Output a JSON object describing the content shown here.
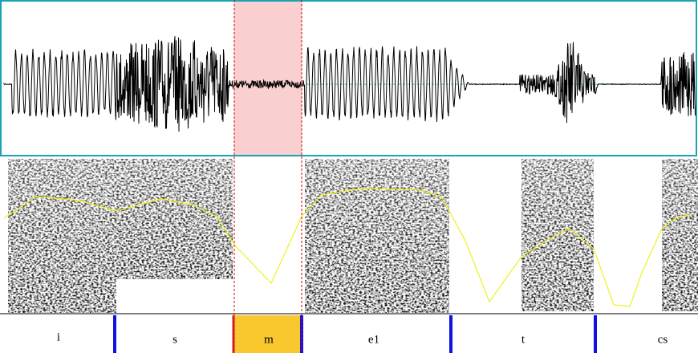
{
  "tier": {
    "segments": [
      "i",
      "s",
      "m",
      "e1",
      "t",
      "cs"
    ]
  }
}
